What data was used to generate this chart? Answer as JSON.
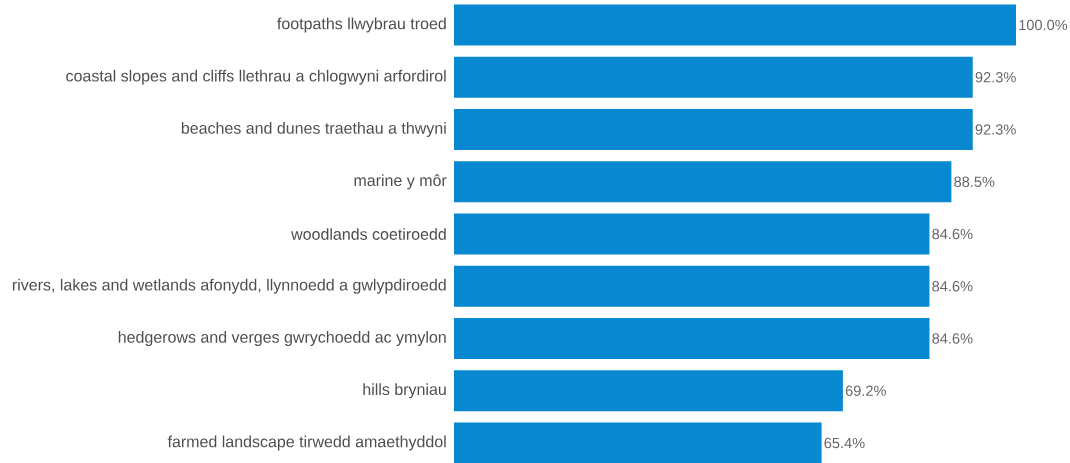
{
  "chart_data": {
    "type": "bar",
    "orientation": "horizontal",
    "categories": [
      "footpaths llwybrau troed",
      "coastal slopes and cliffs llethrau a chlogwyni arfordirol",
      "beaches and dunes traethau a thwyni",
      "marine y môr",
      "woodlands coetiroedd",
      "rivers, lakes and wetlands afonydd, llynnoedd a gwlypdiroedd",
      "hedgerows and verges gwrychoedd ac ymylon",
      "hills bryniau",
      "farmed landscape tirwedd amaethyddol"
    ],
    "values": [
      100,
      92.3,
      92.3,
      88.5,
      84.6,
      84.6,
      84.6,
      69.2,
      65.4
    ],
    "value_labels": [
      "100.0%",
      "92.3%",
      "92.3%",
      "88.5%",
      "84.6%",
      "84.6%",
      "84.6%",
      "69.2%",
      "65.4%"
    ],
    "color": "#0788d1",
    "xlim": [
      0,
      100
    ],
    "tick_labels": "y"
  }
}
